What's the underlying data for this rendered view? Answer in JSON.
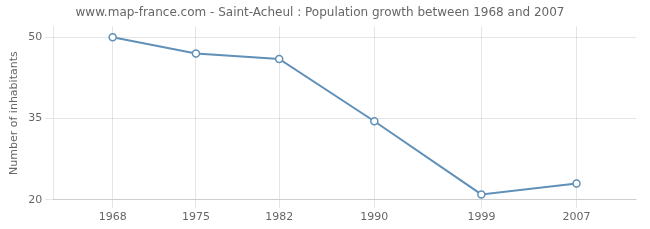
{
  "chart_data": {
    "type": "line",
    "title": "www.map-france.com - Saint-Acheul : Population growth between 1968 and 2007",
    "ylabel": "Number of inhabitants",
    "x": [
      1968,
      1975,
      1982,
      1990,
      1999,
      2007
    ],
    "values": [
      50,
      47.0,
      46.0,
      34.5,
      21.0,
      23.0
    ],
    "color": "#6090b8",
    "marker": "circle",
    "line_style": "solid",
    "xlim": [
      1963,
      2012
    ],
    "xticks": [
      1968,
      1975,
      1982,
      1990,
      1999,
      2007
    ],
    "ylim": [
      20,
      52
    ],
    "yticks": [
      20,
      35,
      50
    ],
    "grid": true
  }
}
